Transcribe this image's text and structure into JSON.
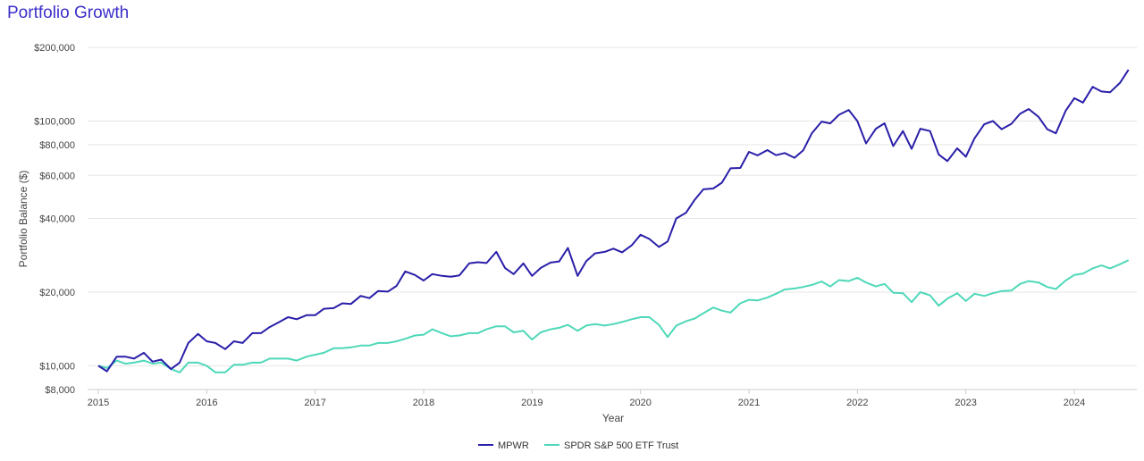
{
  "chart_data": {
    "type": "line",
    "title": "Portfolio Growth",
    "xlabel": "Year",
    "ylabel": "Portfolio Balance ($)",
    "y_scale": "log",
    "ylim": [
      8000,
      200000
    ],
    "xlim": [
      2015.0,
      2024.5
    ],
    "y_ticks": [
      8000,
      10000,
      20000,
      40000,
      60000,
      80000,
      100000,
      200000
    ],
    "y_tick_labels": [
      "$8,000",
      "$10,000",
      "$20,000",
      "$40,000",
      "$60,000",
      "$80,000",
      "$100,000",
      "$200,000"
    ],
    "x_ticks": [
      2015,
      2016,
      2017,
      2018,
      2019,
      2020,
      2021,
      2022,
      2023,
      2024
    ],
    "x_tick_labels": [
      "2015",
      "2016",
      "2017",
      "2018",
      "2019",
      "2020",
      "2021",
      "2022",
      "2023",
      "2024"
    ],
    "grid": "horizontal",
    "legend_position": "bottom",
    "series": [
      {
        "name": "MPWR",
        "color": "#2a1fa8",
        "points": [
          [
            2015.0,
            10000
          ],
          [
            2015.08,
            9500
          ],
          [
            2015.17,
            10900
          ],
          [
            2015.25,
            10900
          ],
          [
            2015.33,
            10700
          ],
          [
            2015.42,
            11300
          ],
          [
            2015.5,
            10400
          ],
          [
            2015.58,
            10600
          ],
          [
            2015.67,
            9700
          ],
          [
            2015.75,
            10300
          ],
          [
            2015.83,
            12400
          ],
          [
            2015.92,
            13500
          ],
          [
            2016.0,
            12600
          ],
          [
            2016.08,
            12400
          ],
          [
            2016.17,
            11700
          ],
          [
            2016.25,
            12600
          ],
          [
            2016.33,
            12400
          ],
          [
            2016.42,
            13600
          ],
          [
            2016.5,
            13600
          ],
          [
            2016.58,
            14400
          ],
          [
            2016.67,
            15100
          ],
          [
            2016.75,
            15800
          ],
          [
            2016.83,
            15500
          ],
          [
            2016.92,
            16100
          ],
          [
            2017.0,
            16100
          ],
          [
            2017.08,
            17100
          ],
          [
            2017.17,
            17200
          ],
          [
            2017.25,
            18000
          ],
          [
            2017.33,
            17900
          ],
          [
            2017.42,
            19300
          ],
          [
            2017.5,
            18900
          ],
          [
            2017.58,
            20200
          ],
          [
            2017.67,
            20100
          ],
          [
            2017.75,
            21200
          ],
          [
            2017.83,
            24300
          ],
          [
            2017.92,
            23500
          ],
          [
            2018.0,
            22300
          ],
          [
            2018.08,
            23700
          ],
          [
            2018.17,
            23300
          ],
          [
            2018.25,
            23100
          ],
          [
            2018.33,
            23400
          ],
          [
            2018.42,
            26200
          ],
          [
            2018.5,
            26500
          ],
          [
            2018.58,
            26300
          ],
          [
            2018.67,
            29200
          ],
          [
            2018.75,
            25100
          ],
          [
            2018.83,
            23700
          ],
          [
            2018.92,
            26200
          ],
          [
            2019.0,
            23300
          ],
          [
            2019.08,
            25100
          ],
          [
            2019.17,
            26400
          ],
          [
            2019.25,
            26700
          ],
          [
            2019.33,
            30300
          ],
          [
            2019.42,
            23300
          ],
          [
            2019.5,
            26800
          ],
          [
            2019.58,
            28800
          ],
          [
            2019.67,
            29200
          ],
          [
            2019.75,
            30100
          ],
          [
            2019.83,
            29100
          ],
          [
            2019.92,
            31100
          ],
          [
            2020.0,
            34300
          ],
          [
            2020.08,
            33000
          ],
          [
            2020.17,
            30600
          ],
          [
            2020.25,
            32200
          ],
          [
            2020.33,
            40000
          ],
          [
            2020.42,
            42200
          ],
          [
            2020.5,
            47700
          ],
          [
            2020.58,
            52600
          ],
          [
            2020.67,
            53000
          ],
          [
            2020.75,
            56000
          ],
          [
            2020.83,
            64100
          ],
          [
            2020.92,
            64300
          ],
          [
            2021.0,
            74800
          ],
          [
            2021.08,
            72400
          ],
          [
            2021.17,
            76100
          ],
          [
            2021.25,
            72500
          ],
          [
            2021.33,
            74000
          ],
          [
            2021.42,
            70800
          ],
          [
            2021.5,
            75900
          ],
          [
            2021.58,
            89200
          ],
          [
            2021.67,
            99500
          ],
          [
            2021.75,
            97800
          ],
          [
            2021.83,
            106000
          ],
          [
            2021.92,
            111000
          ],
          [
            2022.0,
            100000
          ],
          [
            2022.08,
            81000
          ],
          [
            2022.17,
            93000
          ],
          [
            2022.25,
            97900
          ],
          [
            2022.33,
            79000
          ],
          [
            2022.42,
            91000
          ],
          [
            2022.5,
            77000
          ],
          [
            2022.58,
            93000
          ],
          [
            2022.67,
            91000
          ],
          [
            2022.75,
            73000
          ],
          [
            2022.83,
            68600
          ],
          [
            2022.92,
            77400
          ],
          [
            2023.0,
            71500
          ],
          [
            2023.08,
            85000
          ],
          [
            2023.17,
            97000
          ],
          [
            2023.25,
            100000
          ],
          [
            2023.33,
            92600
          ],
          [
            2023.42,
            97400
          ],
          [
            2023.5,
            107000
          ],
          [
            2023.58,
            112000
          ],
          [
            2023.67,
            104000
          ],
          [
            2023.75,
            92600
          ],
          [
            2023.83,
            89100
          ],
          [
            2023.92,
            110000
          ],
          [
            2024.0,
            124000
          ],
          [
            2024.08,
            119000
          ],
          [
            2024.17,
            138000
          ],
          [
            2024.25,
            132000
          ],
          [
            2024.33,
            131000
          ],
          [
            2024.42,
            143000
          ],
          [
            2024.5,
            162000
          ]
        ]
      },
      {
        "name": "SPDR S&P 500 ETF Trust",
        "color": "#4fd8b8",
        "points": [
          [
            2015.0,
            10000
          ],
          [
            2015.08,
            9800
          ],
          [
            2015.17,
            10500
          ],
          [
            2015.25,
            10200
          ],
          [
            2015.33,
            10300
          ],
          [
            2015.42,
            10500
          ],
          [
            2015.5,
            10200
          ],
          [
            2015.58,
            10300
          ],
          [
            2015.67,
            9700
          ],
          [
            2015.75,
            9400
          ],
          [
            2015.83,
            10300
          ],
          [
            2015.92,
            10300
          ],
          [
            2016.0,
            10000
          ],
          [
            2016.08,
            9400
          ],
          [
            2016.17,
            9400
          ],
          [
            2016.25,
            10100
          ],
          [
            2016.33,
            10100
          ],
          [
            2016.42,
            10300
          ],
          [
            2016.5,
            10300
          ],
          [
            2016.58,
            10700
          ],
          [
            2016.67,
            10700
          ],
          [
            2016.75,
            10700
          ],
          [
            2016.83,
            10500
          ],
          [
            2016.92,
            10900
          ],
          [
            2017.0,
            11100
          ],
          [
            2017.08,
            11300
          ],
          [
            2017.17,
            11800
          ],
          [
            2017.25,
            11800
          ],
          [
            2017.33,
            11900
          ],
          [
            2017.42,
            12100
          ],
          [
            2017.5,
            12100
          ],
          [
            2017.58,
            12400
          ],
          [
            2017.67,
            12400
          ],
          [
            2017.75,
            12600
          ],
          [
            2017.83,
            12900
          ],
          [
            2017.92,
            13300
          ],
          [
            2018.0,
            13400
          ],
          [
            2018.08,
            14100
          ],
          [
            2018.17,
            13600
          ],
          [
            2018.25,
            13200
          ],
          [
            2018.33,
            13300
          ],
          [
            2018.42,
            13600
          ],
          [
            2018.5,
            13600
          ],
          [
            2018.58,
            14100
          ],
          [
            2018.67,
            14500
          ],
          [
            2018.75,
            14500
          ],
          [
            2018.83,
            13700
          ],
          [
            2018.92,
            13900
          ],
          [
            2019.0,
            12800
          ],
          [
            2019.08,
            13700
          ],
          [
            2019.17,
            14100
          ],
          [
            2019.25,
            14300
          ],
          [
            2019.33,
            14700
          ],
          [
            2019.42,
            13900
          ],
          [
            2019.5,
            14600
          ],
          [
            2019.58,
            14800
          ],
          [
            2019.67,
            14600
          ],
          [
            2019.75,
            14800
          ],
          [
            2019.83,
            15100
          ],
          [
            2019.92,
            15500
          ],
          [
            2020.0,
            15800
          ],
          [
            2020.08,
            15800
          ],
          [
            2020.17,
            14700
          ],
          [
            2020.25,
            13100
          ],
          [
            2020.33,
            14600
          ],
          [
            2020.42,
            15200
          ],
          [
            2020.5,
            15600
          ],
          [
            2020.58,
            16400
          ],
          [
            2020.67,
            17300
          ],
          [
            2020.75,
            16800
          ],
          [
            2020.83,
            16500
          ],
          [
            2020.92,
            18000
          ],
          [
            2021.0,
            18600
          ],
          [
            2021.08,
            18500
          ],
          [
            2021.17,
            19000
          ],
          [
            2021.25,
            19700
          ],
          [
            2021.33,
            20500
          ],
          [
            2021.42,
            20700
          ],
          [
            2021.5,
            21000
          ],
          [
            2021.58,
            21400
          ],
          [
            2021.67,
            22100
          ],
          [
            2021.75,
            21100
          ],
          [
            2021.83,
            22400
          ],
          [
            2021.92,
            22200
          ],
          [
            2022.0,
            22900
          ],
          [
            2022.08,
            21900
          ],
          [
            2022.17,
            21100
          ],
          [
            2022.25,
            21600
          ],
          [
            2022.33,
            19900
          ],
          [
            2022.42,
            19800
          ],
          [
            2022.5,
            18200
          ],
          [
            2022.58,
            20000
          ],
          [
            2022.67,
            19400
          ],
          [
            2022.75,
            17600
          ],
          [
            2022.83,
            18800
          ],
          [
            2022.92,
            19800
          ],
          [
            2023.0,
            18400
          ],
          [
            2023.08,
            19700
          ],
          [
            2023.17,
            19300
          ],
          [
            2023.25,
            19800
          ],
          [
            2023.33,
            20200
          ],
          [
            2023.42,
            20300
          ],
          [
            2023.5,
            21600
          ],
          [
            2023.58,
            22200
          ],
          [
            2023.67,
            21900
          ],
          [
            2023.75,
            21000
          ],
          [
            2023.83,
            20600
          ],
          [
            2023.92,
            22300
          ],
          [
            2024.0,
            23500
          ],
          [
            2024.08,
            23800
          ],
          [
            2024.17,
            25000
          ],
          [
            2024.25,
            25700
          ],
          [
            2024.33,
            25000
          ],
          [
            2024.42,
            26000
          ],
          [
            2024.5,
            27000
          ]
        ]
      }
    ]
  }
}
